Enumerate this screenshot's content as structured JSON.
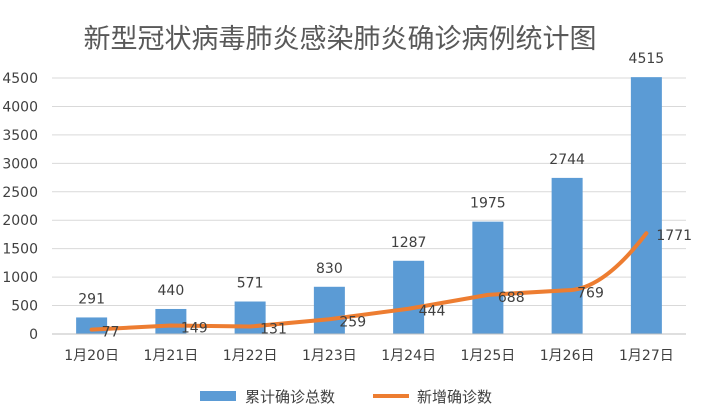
{
  "chart_data": {
    "type": "bar",
    "title": "新型冠状病毒肺炎感染肺炎确诊病例统计图",
    "categories": [
      "1月20日",
      "1月21日",
      "1月22日",
      "1月23日",
      "1月24日",
      "1月25日",
      "1月26日",
      "1月27日"
    ],
    "series": [
      {
        "name": "累计确诊总数",
        "type": "bar",
        "color": "#5B9BD5",
        "values": [
          291,
          440,
          571,
          830,
          1287,
          1975,
          2744,
          4515
        ]
      },
      {
        "name": "新增确诊数",
        "type": "line",
        "color": "#ED7D31",
        "values": [
          77,
          149,
          131,
          259,
          444,
          688,
          769,
          1771
        ]
      }
    ],
    "ylim": [
      0,
      4500
    ],
    "yticks": [
      0,
      500,
      1000,
      1500,
      2000,
      2500,
      3000,
      3500,
      4000,
      4500
    ],
    "grid": true,
    "legend": "bottom"
  }
}
